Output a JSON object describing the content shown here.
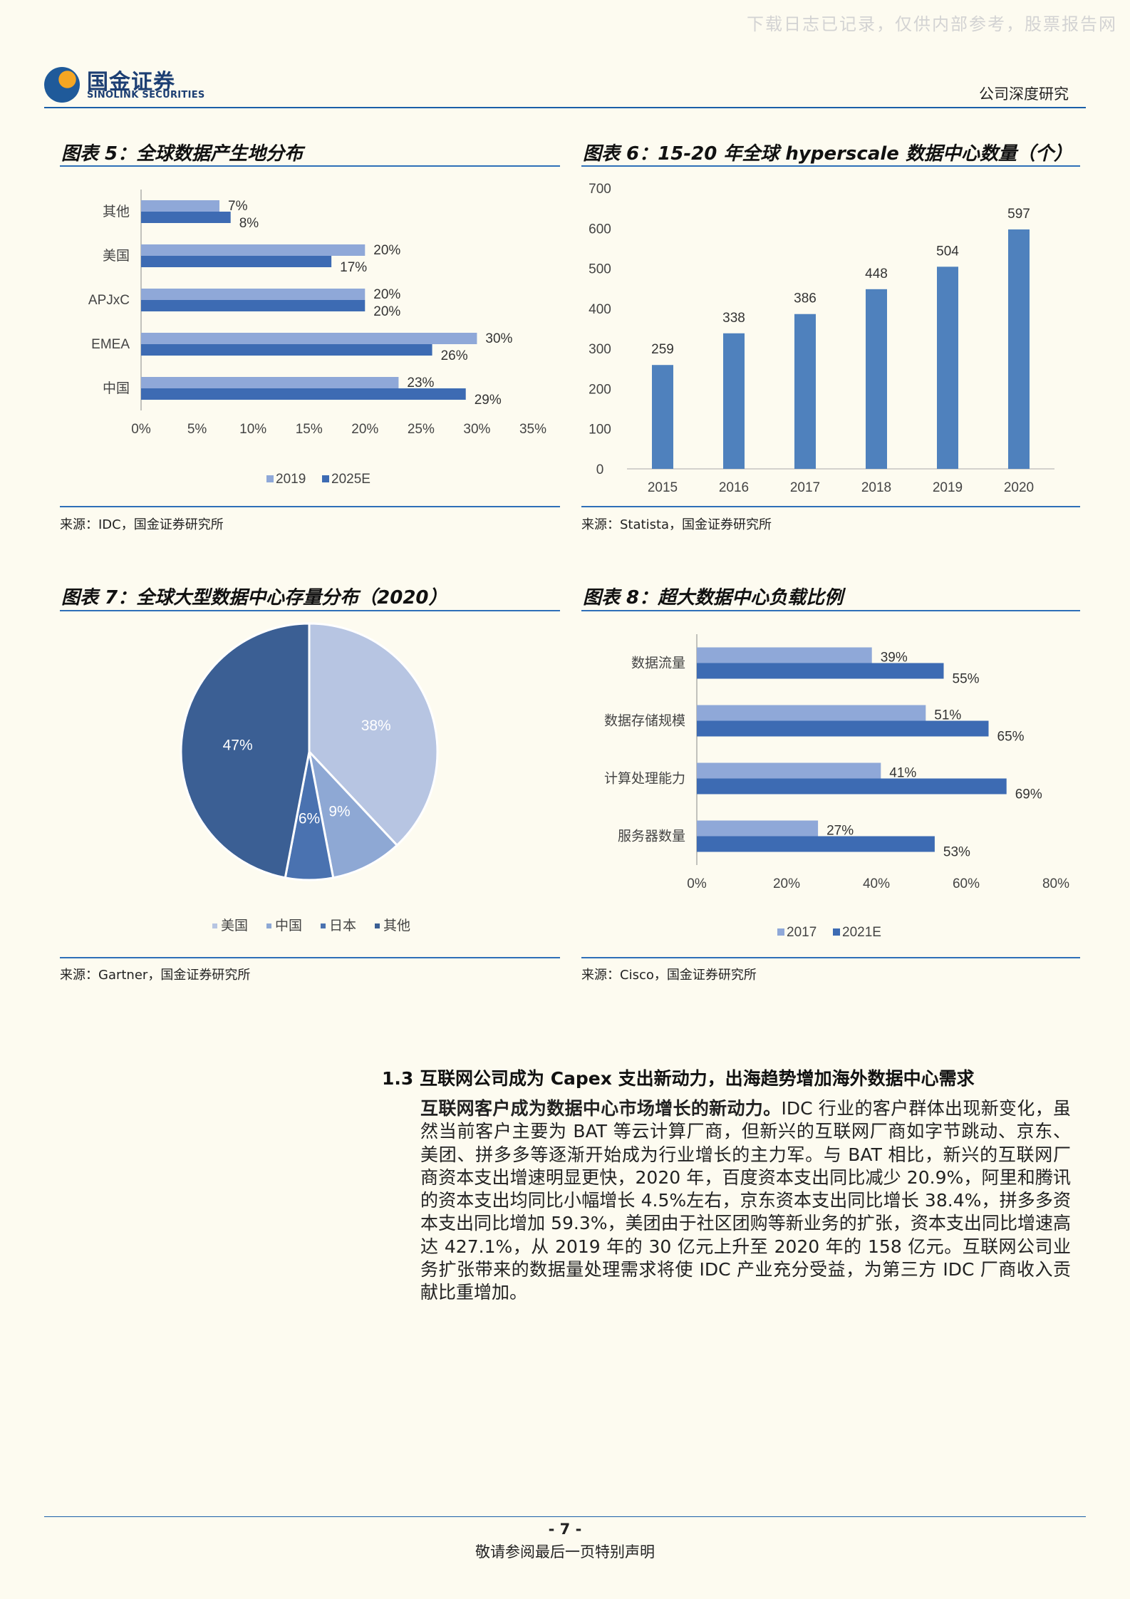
{
  "watermark": "下载日志已记录，仅供内部参考，股票报告网",
  "header": {
    "logo_cn": "国金证券",
    "logo_en": "SINOLINK SECURITIES",
    "report_type": "公司深度研究"
  },
  "figures": {
    "fig5": {
      "title": "图表 5：全球数据产生地分布",
      "source": "来源：IDC，国金证券研究所"
    },
    "fig6": {
      "title": "图表 6：15-20 年全球 hyperscale 数据中心数量（个）",
      "source": "来源：Statista，国金证券研究所"
    },
    "fig7": {
      "title": "图表 7：全球大型数据中心存量分布（2020）",
      "source": "来源：Gartner，国金证券研究所"
    },
    "fig8": {
      "title": "图表 8：超大数据中心负载比例",
      "source": "来源：Cisco，国金证券研究所"
    }
  },
  "chart_data": [
    {
      "id": "fig5",
      "type": "bar",
      "orientation": "horizontal",
      "categories": [
        "其他",
        "美国",
        "APJxC",
        "EMEA",
        "中国"
      ],
      "series": [
        {
          "name": "2019",
          "values": [
            7,
            20,
            20,
            30,
            23
          ],
          "labels": [
            "7%",
            "20%",
            "20%",
            "30%",
            "23%"
          ],
          "color": "#8fa8d8"
        },
        {
          "name": "2025E",
          "values": [
            8,
            17,
            20,
            26,
            29
          ],
          "labels": [
            "8%",
            "17%",
            "20%",
            "26%",
            "29%"
          ],
          "color": "#3d6bb3"
        }
      ],
      "xlim": [
        0,
        35
      ],
      "ticks": [
        "0%",
        "5%",
        "10%",
        "15%",
        "20%",
        "25%",
        "30%",
        "35%"
      ],
      "legend": "bottom"
    },
    {
      "id": "fig6",
      "type": "bar",
      "categories": [
        "2015",
        "2016",
        "2017",
        "2018",
        "2019",
        "2020"
      ],
      "values": [
        259,
        338,
        386,
        448,
        504,
        597
      ],
      "ylim": [
        0,
        700
      ],
      "ticks": [
        "0",
        "100",
        "200",
        "300",
        "400",
        "500",
        "600",
        "700"
      ],
      "color": "#4f81bd"
    },
    {
      "id": "fig7",
      "type": "pie",
      "labels": [
        "美国",
        "中国",
        "日本",
        "其他"
      ],
      "values": [
        38,
        9,
        6,
        47
      ],
      "value_labels": [
        "38%",
        "9%",
        "6%",
        "47%"
      ],
      "colors": [
        "#b7c5e2",
        "#8ea8d4",
        "#4a72b0",
        "#3b5f94"
      ],
      "legend": "bottom"
    },
    {
      "id": "fig8",
      "type": "bar",
      "orientation": "horizontal",
      "categories": [
        "数据流量",
        "数据存储规模",
        "计算处理能力",
        "服务器数量"
      ],
      "series": [
        {
          "name": "2017",
          "values": [
            39,
            51,
            41,
            27
          ],
          "labels": [
            "39%",
            "51%",
            "41%",
            "27%"
          ],
          "color": "#8fa8d8"
        },
        {
          "name": "2021E",
          "values": [
            55,
            65,
            69,
            53
          ],
          "labels": [
            "55%",
            "65%",
            "69%",
            "53%"
          ],
          "color": "#3d6bb3"
        }
      ],
      "xlim": [
        0,
        80
      ],
      "ticks": [
        "0%",
        "20%",
        "40%",
        "60%",
        "80%"
      ],
      "legend": "bottom"
    }
  ],
  "section": {
    "title": "1.3 互联网公司成为 Capex 支出新动力，出海趋势增加海外数据中心需求",
    "lead": "互联网客户成为数据中心市场增长的新动力。",
    "body": "IDC 行业的客户群体出现新变化，虽然当前客户主要为 BAT 等云计算厂商，但新兴的互联网厂商如字节跳动、京东、美团、拼多多等逐渐开始成为行业增长的主力军。与 BAT 相比，新兴的互联网厂商资本支出增速明显更快，2020 年，百度资本支出同比减少 20.9%，阿里和腾讯的资本支出均同比小幅增长 4.5%左右，京东资本支出同比增长 38.4%，拼多多资本支出同比增加 59.3%，美团由于社区团购等新业务的扩张，资本支出同比增速高达 427.1%，从 2019 年的 30 亿元上升至 2020 年的 158 亿元。互联网公司业务扩张带来的数据量处理需求将使 IDC 产业充分受益，为第三方 IDC 厂商收入贡献比重增加。"
  },
  "footer": {
    "page_number": "- 7 -",
    "disclaimer": "敬请参阅最后一页特别声明"
  }
}
